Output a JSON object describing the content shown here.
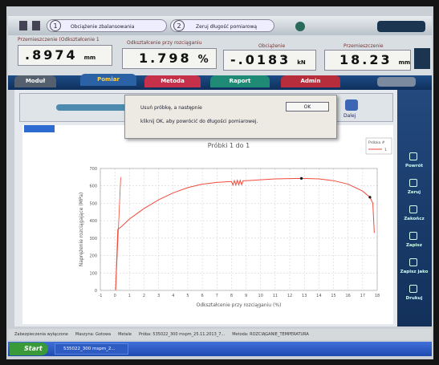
{
  "toolbar": {
    "steps": [
      {
        "number": "1",
        "label": "Obciążenie zbalansowania"
      },
      {
        "number": "2",
        "label": "Zeruj długość pomiarową"
      }
    ]
  },
  "readouts": [
    {
      "label": "Przemieszczenie (Odkształcenie 1",
      "value": ".8974",
      "unit": "mm"
    },
    {
      "label": "Odkształcenie przy rozciąganiu",
      "value": "1.798",
      "unit": "%"
    },
    {
      "label": "Obciążenie",
      "value": "-.0183",
      "unit": "kN"
    },
    {
      "label": "Przemieszczenie",
      "value": "18.23",
      "unit": "mm"
    }
  ],
  "tabs": [
    "Moduł",
    "Pomiar",
    "Metoda",
    "Raport",
    "Admin"
  ],
  "dialog": {
    "lines": [
      "Usuń próbkę, a następnie",
      "kliknij OK, aby powrócić do długości pomiarowej."
    ],
    "button": "OK"
  },
  "next_button": "Dalej",
  "sidebar": [
    "Powrót",
    "Zeruj",
    "Zakończ",
    "Zapisz",
    "Zapisz jako",
    "Drukuj"
  ],
  "status": [
    "Zabezpieczenia wyłączone",
    "Maszyna: Gotowa",
    "Metale",
    "Próba: 535022_300 mspm_25.11.2013_7...",
    "Metoda: ROZCIĄGANIE_TEMPERATURA"
  ],
  "taskbar": {
    "start": "Start",
    "window": "535022_300 mspm_2..."
  },
  "chart_data": {
    "type": "line",
    "title": "Próbki 1 do 1",
    "x_label": "Odkształcenie przy rozciąganiu (%)",
    "y_label": "Naprężenie rozciągające (MPa)",
    "legend_title": "Próbka #",
    "grid": true,
    "xlim": [
      -1,
      18
    ],
    "ylim": [
      0,
      700
    ],
    "xticks": [
      -1,
      0,
      1,
      2,
      3,
      4,
      5,
      6,
      7,
      8,
      9,
      10,
      11,
      12,
      13,
      14,
      15,
      16,
      17,
      18
    ],
    "yticks": [
      0,
      100,
      200,
      300,
      400,
      500,
      600,
      700
    ],
    "series": [
      {
        "name": "1",
        "color": "#f04a3a",
        "x": [
          0.05,
          0.2,
          0.5,
          1,
          1.5,
          2,
          3,
          4,
          5,
          6,
          7,
          8,
          8.1,
          8.2,
          8.3,
          8.4,
          8.5,
          8.6,
          8.7,
          8.8,
          9,
          10,
          11,
          12,
          12.8,
          14,
          15,
          16,
          17,
          17.5,
          17.7,
          17.8
        ],
        "values": [
          0,
          350,
          370,
          410,
          440,
          470,
          520,
          560,
          590,
          610,
          620,
          625,
          605,
          630,
          605,
          632,
          606,
          632,
          607,
          630,
          630,
          635,
          640,
          642,
          643,
          640,
          630,
          610,
          570,
          535,
          500,
          330
        ]
      }
    ],
    "reference_line": {
      "x": [
        0.05,
        0.4
      ],
      "values": [
        0,
        650
      ]
    },
    "markers": {
      "x": [
        12.8,
        17.5
      ],
      "values": [
        643,
        535
      ]
    }
  }
}
